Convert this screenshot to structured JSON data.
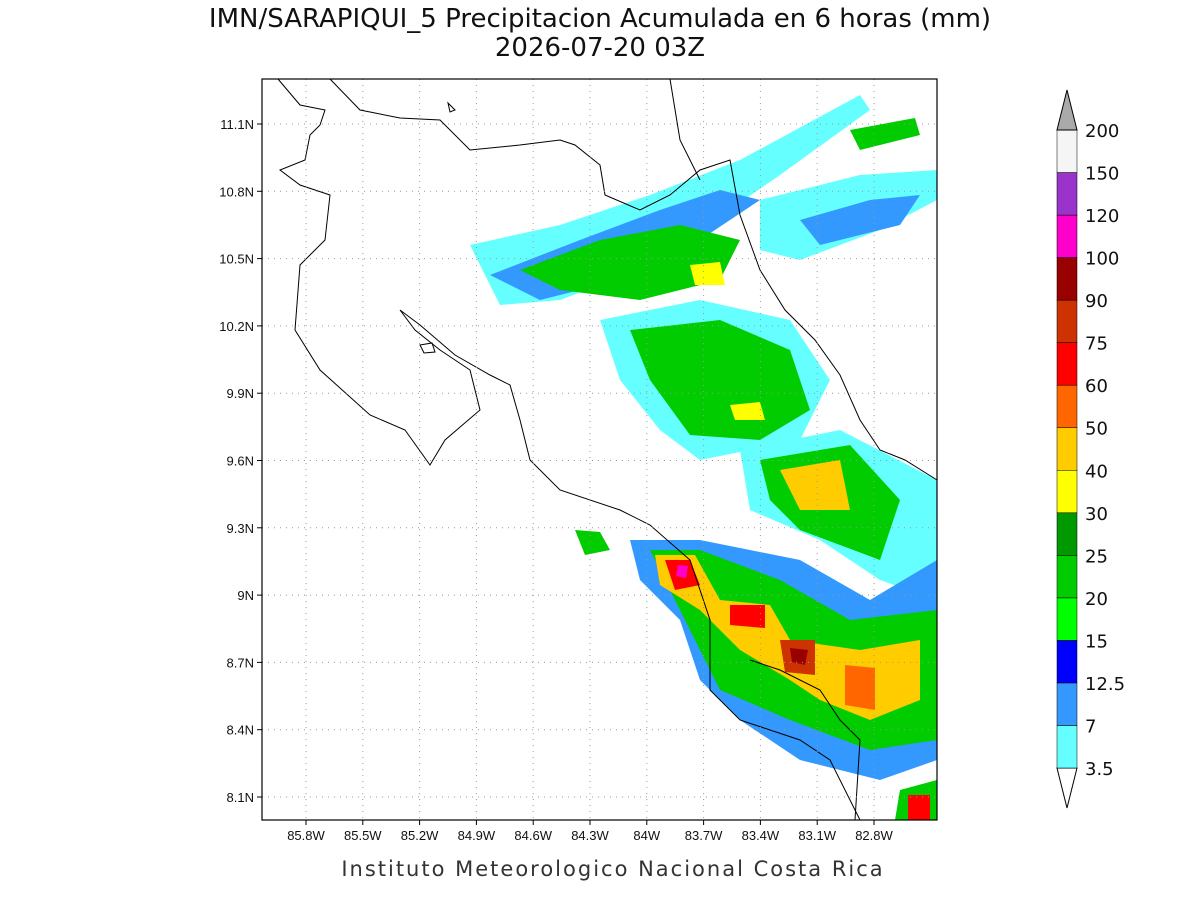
{
  "header": {
    "title": "IMN/SARAPIQUI_5 Precipitacion Acumulada en 6 horas (mm)",
    "subtitle": "2026-07-20 03Z"
  },
  "map": {
    "lon_labels": [
      "85.8W",
      "85.5W",
      "85.2W",
      "84.9W",
      "84.6W",
      "84.3W",
      "84W",
      "83.7W",
      "83.4W",
      "83.1W",
      "82.8W"
    ],
    "lat_labels": [
      "11.1N",
      "10.8N",
      "10.5N",
      "10.2N",
      "9.9N",
      "9.6N",
      "9.3N",
      "9N",
      "8.7N",
      "8.4N",
      "8.1N"
    ]
  },
  "colorbar": {
    "levels": [
      "3.5",
      "7",
      "12.5",
      "15",
      "20",
      "25",
      "30",
      "40",
      "50",
      "60",
      "75",
      "90",
      "100",
      "120",
      "150",
      "200"
    ],
    "colors": [
      "#ffffff",
      "#66ffff",
      "#3399ff",
      "#0000ff",
      "#00ff00",
      "#00cc00",
      "#009900",
      "#ffff00",
      "#ffcc00",
      "#ff6600",
      "#ff0000",
      "#cc3300",
      "#990000",
      "#ff00cc",
      "#9933cc",
      "#f5f5f5",
      "#aaaaaa"
    ]
  },
  "footer": {
    "text": "Instituto Meteorologico Nacional Costa Rica"
  }
}
